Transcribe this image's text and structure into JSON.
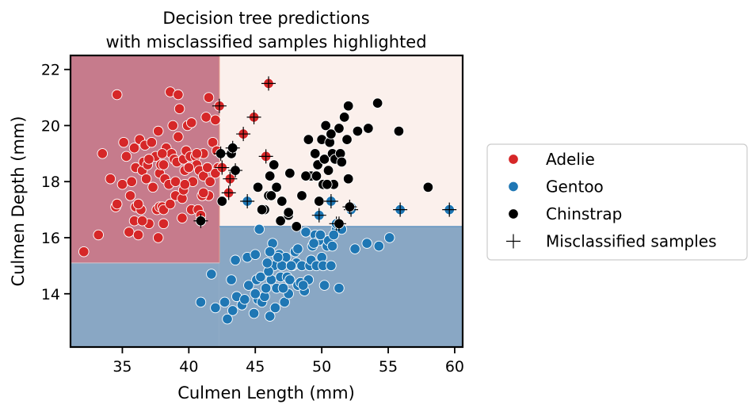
{
  "chart_data": {
    "type": "scatter",
    "title_lines": [
      "Decision tree predictions",
      "with misclassified samples highlighted"
    ],
    "xlabel": "Culmen Length (mm)",
    "ylabel": "Culmen Depth (mm)",
    "xlim": [
      31.1,
      60.6
    ],
    "ylim": [
      12.1,
      22.5
    ],
    "xticks": [
      35,
      40,
      45,
      50,
      55,
      60
    ],
    "yticks": [
      14,
      16,
      18,
      20,
      22
    ],
    "grid": false,
    "legend_position": "outside-right",
    "decision_regions": [
      {
        "class": "Adelie",
        "color": "#c67b8c",
        "x0": 31.1,
        "x1": 42.3,
        "y0": 15.1,
        "y1": 22.5
      },
      {
        "class": "Gentoo",
        "color": "#89a7c4",
        "x0": 31.1,
        "x1": 42.3,
        "y0": 12.1,
        "y1": 15.1
      },
      {
        "class": "Gentoo",
        "color": "#89a7c4",
        "x0": 42.3,
        "x1": 60.6,
        "y0": 12.1,
        "y1": 16.4
      },
      {
        "class": "Chinstrap",
        "color": "#fbf0ec",
        "x0": 42.3,
        "x1": 60.6,
        "y0": 16.4,
        "y1": 22.5
      }
    ],
    "series": [
      {
        "name": "Adelie",
        "color": "#d62728",
        "points": [
          [
            32.1,
            15.5
          ],
          [
            33.2,
            16.1
          ],
          [
            33.5,
            19.0
          ],
          [
            34.1,
            18.1
          ],
          [
            34.5,
            17.1
          ],
          [
            34.6,
            21.1
          ],
          [
            34.6,
            17.2
          ],
          [
            35.0,
            17.9
          ],
          [
            35.1,
            19.4
          ],
          [
            35.3,
            18.9
          ],
          [
            35.5,
            16.2
          ],
          [
            35.6,
            17.5
          ],
          [
            35.7,
            18.0
          ],
          [
            35.9,
            19.2
          ],
          [
            36.0,
            18.5
          ],
          [
            36.0,
            17.1
          ],
          [
            36.2,
            16.1
          ],
          [
            36.3,
            19.5
          ],
          [
            36.4,
            17.0
          ],
          [
            36.5,
            18.4
          ],
          [
            36.6,
            18.7
          ],
          [
            36.7,
            19.3
          ],
          [
            36.8,
            18.1
          ],
          [
            36.9,
            18.6
          ],
          [
            37.0,
            16.5
          ],
          [
            37.2,
            19.4
          ],
          [
            37.3,
            17.8
          ],
          [
            37.5,
            18.9
          ],
          [
            37.6,
            17.0
          ],
          [
            37.7,
            19.8
          ],
          [
            37.8,
            18.3
          ],
          [
            37.8,
            17.1
          ],
          [
            37.9,
            18.6
          ],
          [
            38.0,
            17.1
          ],
          [
            38.1,
            18.6
          ],
          [
            38.1,
            17.0
          ],
          [
            38.2,
            18.1
          ],
          [
            38.3,
            19.2
          ],
          [
            38.5,
            17.9
          ],
          [
            38.6,
            21.2
          ],
          [
            38.6,
            17.2
          ],
          [
            38.7,
            19.0
          ],
          [
            38.8,
            20.0
          ],
          [
            38.9,
            18.8
          ],
          [
            39.0,
            17.5
          ],
          [
            39.1,
            18.7
          ],
          [
            39.2,
            21.1
          ],
          [
            39.2,
            19.6
          ],
          [
            39.3,
            20.6
          ],
          [
            39.5,
            17.4
          ],
          [
            39.5,
            16.7
          ],
          [
            39.6,
            18.8
          ],
          [
            39.6,
            17.7
          ],
          [
            39.7,
            18.4
          ],
          [
            39.8,
            19.1
          ],
          [
            40.1,
            18.9
          ],
          [
            40.2,
            17.0
          ],
          [
            40.3,
            18.0
          ],
          [
            40.5,
            18.9
          ],
          [
            40.6,
            18.6
          ],
          [
            40.7,
            17.0
          ],
          [
            40.8,
            18.4
          ],
          [
            40.9,
            16.8
          ],
          [
            41.1,
            18.2
          ],
          [
            41.1,
            19.0
          ],
          [
            41.3,
            20.3
          ],
          [
            41.4,
            18.5
          ],
          [
            41.5,
            17.5
          ],
          [
            41.6,
            18.0
          ],
          [
            41.8,
            19.4
          ],
          [
            42.0,
            20.2
          ],
          [
            42.1,
            19.1
          ],
          [
            42.2,
            18.5
          ],
          [
            39.0,
            18.0
          ],
          [
            37.0,
            18.8
          ],
          [
            38.0,
            19.0
          ],
          [
            36.2,
            17.2
          ],
          [
            40.0,
            18.5
          ],
          [
            41.0,
            17.5
          ],
          [
            42.0,
            18.3
          ],
          [
            40.6,
            19.0
          ],
          [
            41.5,
            21.0
          ],
          [
            39.9,
            20.0
          ],
          [
            37.7,
            16.0
          ],
          [
            38.1,
            16.5
          ],
          [
            39.7,
            17.9
          ],
          [
            40.2,
            20.1
          ],
          [
            41.1,
            17.6
          ],
          [
            35.9,
            16.6
          ],
          [
            36.5,
            16.6
          ]
        ]
      },
      {
        "name": "Gentoo",
        "color": "#1f77b4",
        "points": [
          [
            40.9,
            13.7
          ],
          [
            41.7,
            14.7
          ],
          [
            42.0,
            13.5
          ],
          [
            42.7,
            13.7
          ],
          [
            42.9,
            13.1
          ],
          [
            43.2,
            14.5
          ],
          [
            43.3,
            13.4
          ],
          [
            43.5,
            15.2
          ],
          [
            43.6,
            13.9
          ],
          [
            44.0,
            13.6
          ],
          [
            44.4,
            15.3
          ],
          [
            44.5,
            14.3
          ],
          [
            44.9,
            13.3
          ],
          [
            45.0,
            15.4
          ],
          [
            45.1,
            14.5
          ],
          [
            45.2,
            13.8
          ],
          [
            45.3,
            16.3
          ],
          [
            45.4,
            14.6
          ],
          [
            45.5,
            13.7
          ],
          [
            45.7,
            13.9
          ],
          [
            45.8,
            14.2
          ],
          [
            46.1,
            13.2
          ],
          [
            46.2,
            14.5
          ],
          [
            46.3,
            15.8
          ],
          [
            46.4,
            15.0
          ],
          [
            46.5,
            13.5
          ],
          [
            46.6,
            14.2
          ],
          [
            46.8,
            15.4
          ],
          [
            46.9,
            14.6
          ],
          [
            47.2,
            13.7
          ],
          [
            47.3,
            15.3
          ],
          [
            47.4,
            14.6
          ],
          [
            47.5,
            14.0
          ],
          [
            47.6,
            14.5
          ],
          [
            47.8,
            15.0
          ],
          [
            48.1,
            15.1
          ],
          [
            48.2,
            14.3
          ],
          [
            48.4,
            14.4
          ],
          [
            48.5,
            15.0
          ],
          [
            48.7,
            14.1
          ],
          [
            48.8,
            16.2
          ],
          [
            49.0,
            14.5
          ],
          [
            49.1,
            15.0
          ],
          [
            49.2,
            15.2
          ],
          [
            49.3,
            15.7
          ],
          [
            49.5,
            16.1
          ],
          [
            49.6,
            15.0
          ],
          [
            49.8,
            15.9
          ],
          [
            50.0,
            15.3
          ],
          [
            50.1,
            15.0
          ],
          [
            50.2,
            14.3
          ],
          [
            50.4,
            15.7
          ],
          [
            50.5,
            15.9
          ],
          [
            50.7,
            15.0
          ],
          [
            50.8,
            15.7
          ],
          [
            51.1,
            16.3
          ],
          [
            51.3,
            14.2
          ],
          [
            51.5,
            16.3
          ],
          [
            52.2,
            17.1
          ],
          [
            52.5,
            15.6
          ],
          [
            53.4,
            15.8
          ],
          [
            54.3,
            15.7
          ],
          [
            55.1,
            16.0
          ],
          [
            46.0,
            14.8
          ],
          [
            47.0,
            15.0
          ],
          [
            48.0,
            15.5
          ],
          [
            45.0,
            14.0
          ],
          [
            46.7,
            15.3
          ],
          [
            49.4,
            15.8
          ],
          [
            48.6,
            14.3
          ],
          [
            47.7,
            15.0
          ],
          [
            44.2,
            13.8
          ],
          [
            45.9,
            15.1
          ],
          [
            50.9,
            16.1
          ],
          [
            49.9,
            16.1
          ],
          [
            46.1,
            15.5
          ],
          [
            47.1,
            14.2
          ],
          [
            48.2,
            15.6
          ]
        ]
      },
      {
        "name": "Chinstrap",
        "color": "#000000",
        "points": [
          [
            40.9,
            16.6
          ],
          [
            42.5,
            17.3
          ],
          [
            43.2,
            19.0
          ],
          [
            45.2,
            17.8
          ],
          [
            45.7,
            17.0
          ],
          [
            46.0,
            17.5
          ],
          [
            46.4,
            18.6
          ],
          [
            46.6,
            17.8
          ],
          [
            46.9,
            16.6
          ],
          [
            47.0,
            17.3
          ],
          [
            47.5,
            16.8
          ],
          [
            47.6,
            18.3
          ],
          [
            48.1,
            16.4
          ],
          [
            48.5,
            17.5
          ],
          [
            49.0,
            19.5
          ],
          [
            49.2,
            18.2
          ],
          [
            49.5,
            19.0
          ],
          [
            49.7,
            18.6
          ],
          [
            49.8,
            17.3
          ],
          [
            50.0,
            19.5
          ],
          [
            50.1,
            17.9
          ],
          [
            50.2,
            18.8
          ],
          [
            50.3,
            20.0
          ],
          [
            50.5,
            18.4
          ],
          [
            50.6,
            19.4
          ],
          [
            50.8,
            19.0
          ],
          [
            50.9,
            17.9
          ],
          [
            51.0,
            18.8
          ],
          [
            51.3,
            19.9
          ],
          [
            51.4,
            19.0
          ],
          [
            51.5,
            18.7
          ],
          [
            51.7,
            20.3
          ],
          [
            51.9,
            19.5
          ],
          [
            52.0,
            18.1
          ],
          [
            52.0,
            20.7
          ],
          [
            52.7,
            19.8
          ],
          [
            53.5,
            19.9
          ],
          [
            54.2,
            20.8
          ],
          [
            55.8,
            19.8
          ],
          [
            58.0,
            17.8
          ],
          [
            46.1,
            18.2
          ],
          [
            49.6,
            18.2
          ],
          [
            50.7,
            19.7
          ],
          [
            46.2,
            17.5
          ],
          [
            45.5,
            17.0
          ],
          [
            47.5,
            16.9
          ],
          [
            48.8,
            18.2
          ],
          [
            50.4,
            17.9
          ]
        ]
      }
    ],
    "misclassified": [
      {
        "x": 42.3,
        "y": 20.7,
        "class": "Adelie"
      },
      {
        "x": 46.0,
        "y": 21.5,
        "class": "Adelie"
      },
      {
        "x": 44.1,
        "y": 19.7,
        "class": "Adelie"
      },
      {
        "x": 45.8,
        "y": 18.9,
        "class": "Adelie"
      },
      {
        "x": 42.5,
        "y": 18.5,
        "class": "Adelie"
      },
      {
        "x": 43.1,
        "y": 18.1,
        "class": "Adelie"
      },
      {
        "x": 43.0,
        "y": 17.6,
        "class": "Adelie"
      },
      {
        "x": 44.9,
        "y": 20.3,
        "class": "Adelie"
      },
      {
        "x": 43.5,
        "y": 18.4,
        "class": "Chinstrap"
      },
      {
        "x": 42.4,
        "y": 19.0,
        "class": "Chinstrap"
      },
      {
        "x": 43.3,
        "y": 19.2,
        "class": "Chinstrap"
      },
      {
        "x": 44.4,
        "y": 17.3,
        "class": "Gentoo"
      },
      {
        "x": 49.8,
        "y": 16.8,
        "class": "Gentoo"
      },
      {
        "x": 50.7,
        "y": 17.3,
        "class": "Gentoo"
      },
      {
        "x": 51.1,
        "y": 16.5,
        "class": "Gentoo"
      },
      {
        "x": 52.2,
        "y": 17.0,
        "class": "Gentoo"
      },
      {
        "x": 55.9,
        "y": 17.0,
        "class": "Gentoo"
      },
      {
        "x": 59.6,
        "y": 17.0,
        "class": "Gentoo"
      },
      {
        "x": 40.9,
        "y": 16.6,
        "class": "Chinstrap"
      },
      {
        "x": 51.3,
        "y": 16.5,
        "class": "Chinstrap"
      },
      {
        "x": 52.1,
        "y": 17.1,
        "class": "Chinstrap"
      }
    ],
    "legend": [
      {
        "label": "Adelie",
        "marker": "circle",
        "color": "#d62728"
      },
      {
        "label": "Gentoo",
        "marker": "circle",
        "color": "#1f77b4"
      },
      {
        "label": "Chinstrap",
        "marker": "circle",
        "color": "#000000"
      },
      {
        "label": "Misclassified samples",
        "marker": "plus",
        "color": "#000000"
      }
    ]
  }
}
